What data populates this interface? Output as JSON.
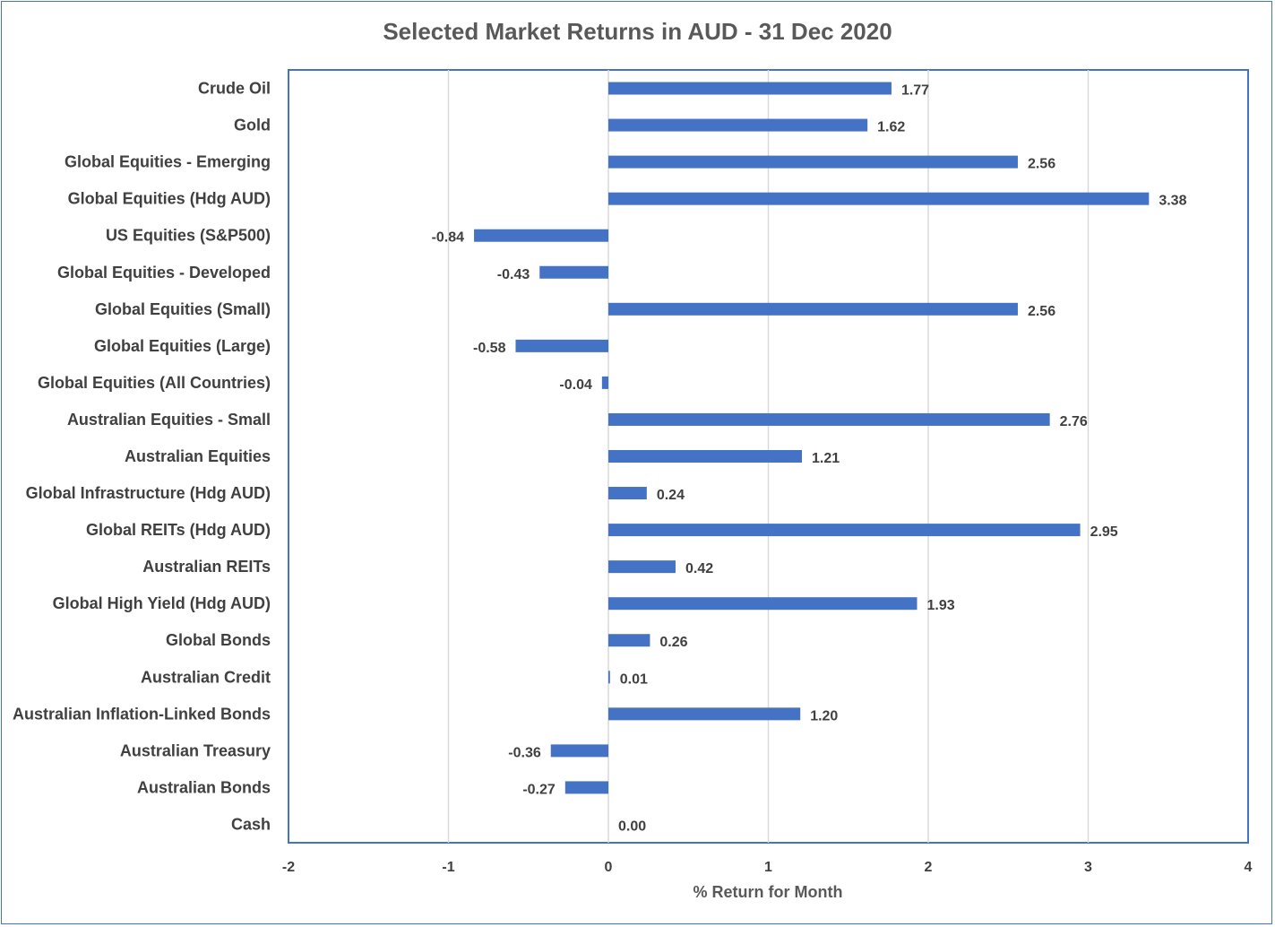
{
  "chart_data": {
    "type": "bar",
    "orientation": "horizontal",
    "title": "Selected Market Returns in AUD - 31 Dec 2020",
    "xlabel": "% Return for Month",
    "ylabel": "",
    "xlim": [
      -2,
      4
    ],
    "xticks": [
      "-2",
      "-1",
      "0",
      "1",
      "2",
      "3",
      "4"
    ],
    "grid": true,
    "bar_color": "#4472c4",
    "categories": [
      "Crude Oil",
      "Gold",
      "Global Equities - Emerging",
      "Global Equities (Hdg AUD)",
      "US Equities (S&P500)",
      "Global Equities - Developed",
      "Global Equities (Small)",
      "Global Equities (Large)",
      "Global Equities (All Countries)",
      "Australian Equities - Small",
      "Australian Equities",
      "Global Infrastructure (Hdg AUD)",
      "Global REITs (Hdg AUD)",
      "Australian REITs",
      "Global High Yield (Hdg AUD)",
      "Global Bonds",
      "Australian Credit",
      "Australian Inflation-Linked Bonds",
      "Australian Treasury",
      "Australian Bonds",
      "Cash"
    ],
    "values": [
      1.77,
      1.62,
      2.56,
      3.38,
      -0.84,
      -0.43,
      2.56,
      -0.58,
      -0.04,
      2.76,
      1.21,
      0.24,
      2.95,
      0.42,
      1.93,
      0.26,
      0.01,
      1.2,
      -0.36,
      -0.27,
      0.0
    ],
    "data_labels": [
      "1.77",
      "1.62",
      "2.56",
      "3.38",
      "-0.84",
      "-0.43",
      "2.56",
      "-0.58",
      "-0.04",
      "2.76",
      "1.21",
      "0.24",
      "2.95",
      "0.42",
      "1.93",
      "0.26",
      "0.01",
      "1.20",
      "-0.36",
      "-0.27",
      "0.00"
    ]
  }
}
